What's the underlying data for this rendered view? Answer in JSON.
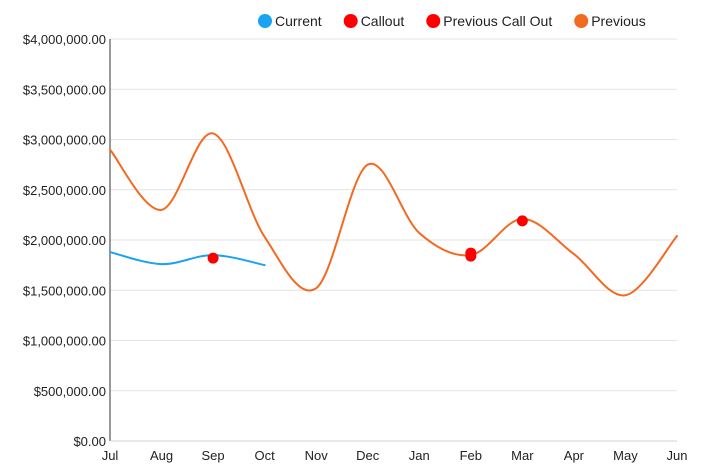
{
  "chart_data": {
    "type": "line",
    "x_categories": [
      "Jul",
      "Aug",
      "Sep",
      "Oct",
      "Nov",
      "Dec",
      "Jan",
      "Feb",
      "Mar",
      "Apr",
      "May",
      "Jun"
    ],
    "y_ticks": [
      "$0.00",
      "$500,000.00",
      "$1,000,000.00",
      "$1,500,000.00",
      "$2,000,000.00",
      "$2,500,000.00",
      "$3,000,000.00",
      "$3,500,000.00",
      "$4,000,000.00"
    ],
    "ylim": [
      0,
      4000000
    ],
    "grid": true,
    "legend_position": "top",
    "series": [
      {
        "name": "Current",
        "kind": "line",
        "color": "#1aa3f0",
        "points": [
          {
            "x": "Jul",
            "y": 1880000
          },
          {
            "x": "Aug",
            "y": 1760000
          },
          {
            "x": "Sep",
            "y": 1850000
          },
          {
            "x": "Oct",
            "y": 1750000
          }
        ]
      },
      {
        "name": "Callout",
        "kind": "marker",
        "color": "#ff0000",
        "points": [
          {
            "x": "Sep",
            "y": 1820000
          },
          {
            "x": "Feb",
            "y": 1840000
          }
        ]
      },
      {
        "name": "Previous Call Out",
        "kind": "marker",
        "color": "#ff0000",
        "points": [
          {
            "x": "Feb",
            "y": 1870000
          },
          {
            "x": "Mar",
            "y": 2190000
          }
        ]
      },
      {
        "name": "Previous",
        "kind": "line",
        "color": "#f26a21",
        "points": [
          {
            "x": "Jul",
            "y": 2900000
          },
          {
            "x": "Aug",
            "y": 2300000
          },
          {
            "x": "Sep",
            "y": 3060000
          },
          {
            "x": "Oct",
            "y": 2030000
          },
          {
            "x": "Nov",
            "y": 1520000
          },
          {
            "x": "Dec",
            "y": 2750000
          },
          {
            "x": "Jan",
            "y": 2070000
          },
          {
            "x": "Feb",
            "y": 1850000
          },
          {
            "x": "Mar",
            "y": 2210000
          },
          {
            "x": "Apr",
            "y": 1860000
          },
          {
            "x": "May",
            "y": 1450000
          },
          {
            "x": "Jun",
            "y": 2040000
          }
        ]
      }
    ]
  }
}
